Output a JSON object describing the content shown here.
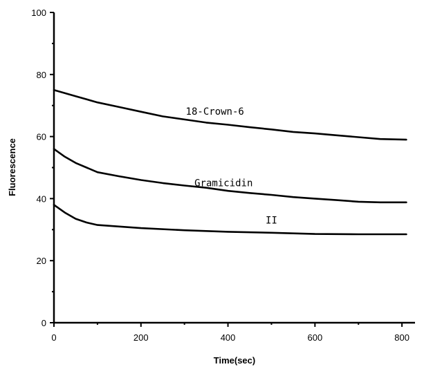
{
  "chart_data": {
    "type": "line",
    "title": "",
    "xlabel": "Time(sec)",
    "ylabel": "Fluorescence",
    "xlim": [
      0,
      830
    ],
    "ylim": [
      0,
      100
    ],
    "xticks": [
      0,
      200,
      400,
      600,
      800
    ],
    "yticks": [
      0,
      20,
      40,
      60,
      80,
      100
    ],
    "grid": false,
    "legend": "none",
    "series": [
      {
        "name": "18-Crown-6",
        "x": [
          0,
          50,
          100,
          150,
          200,
          250,
          300,
          350,
          400,
          450,
          500,
          550,
          600,
          650,
          700,
          750,
          810
        ],
        "y": [
          75,
          73,
          71,
          69.5,
          68,
          66.5,
          65.5,
          64.5,
          63.8,
          63,
          62.3,
          61.5,
          61,
          60.4,
          59.8,
          59.2,
          59
        ]
      },
      {
        "name": "Gramicidin",
        "x": [
          0,
          25,
          50,
          75,
          100,
          150,
          200,
          250,
          300,
          350,
          400,
          450,
          500,
          550,
          600,
          650,
          700,
          750,
          810
        ],
        "y": [
          56,
          53.5,
          51.5,
          50,
          48.5,
          47.2,
          46,
          45,
          44.2,
          43.5,
          42.5,
          41.8,
          41.2,
          40.5,
          40,
          39.5,
          39,
          38.8,
          38.8
        ]
      },
      {
        "name": "II",
        "x": [
          0,
          25,
          50,
          75,
          100,
          150,
          200,
          300,
          400,
          500,
          600,
          700,
          810
        ],
        "y": [
          38,
          35.5,
          33.5,
          32.3,
          31.5,
          31,
          30.5,
          29.8,
          29.3,
          29,
          28.6,
          28.5,
          28.5
        ]
      }
    ]
  }
}
